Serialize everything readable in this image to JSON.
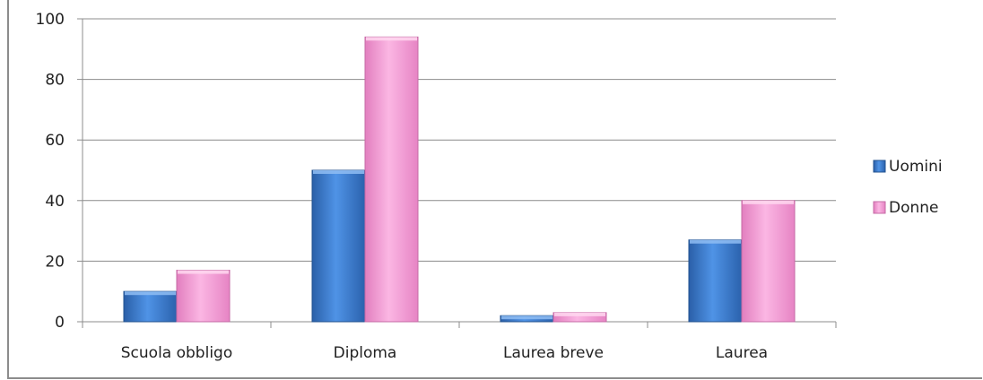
{
  "chart_data": {
    "type": "bar",
    "categories": [
      "Scuola obbligo",
      "Diploma",
      "Laurea breve",
      "Laurea"
    ],
    "series": [
      {
        "name": "Uomini",
        "values": [
          10,
          50,
          2,
          27
        ],
        "color": "#3a7bd0"
      },
      {
        "name": "Donne",
        "values": [
          17,
          94,
          3,
          40
        ],
        "color": "#f49ad4"
      }
    ],
    "ylim": [
      0,
      100
    ],
    "yticks": [
      0,
      20,
      40,
      60,
      80,
      100
    ],
    "grid": true,
    "legend_position": "right",
    "title": "",
    "xlabel": "",
    "ylabel": ""
  }
}
